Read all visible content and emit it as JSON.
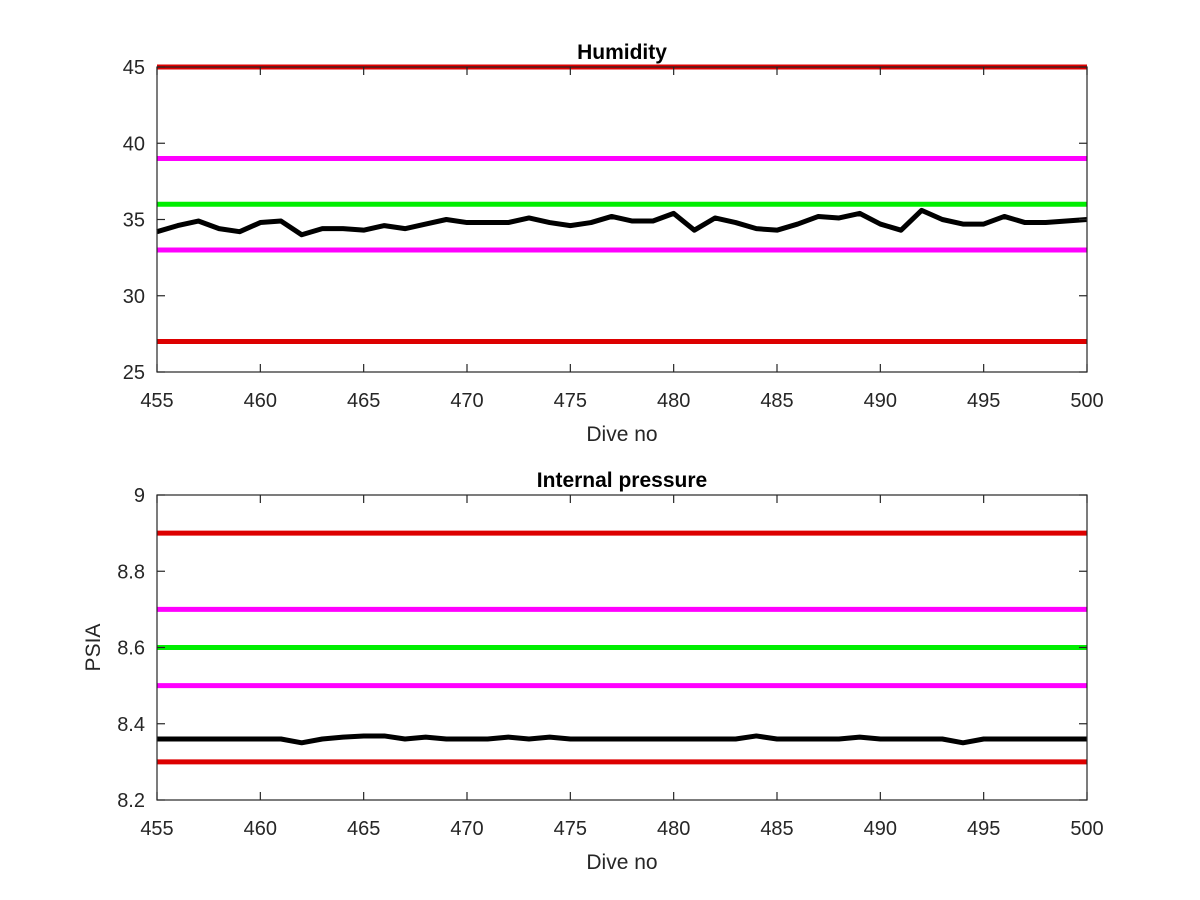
{
  "chart_data": [
    {
      "type": "line",
      "title": "Humidity",
      "xlabel": "Dive no",
      "ylabel": "",
      "xlim": [
        455,
        500
      ],
      "ylim": [
        25,
        45
      ],
      "xticks": [
        455,
        460,
        465,
        470,
        475,
        480,
        485,
        490,
        495,
        500
      ],
      "yticks": [
        25,
        30,
        35,
        40,
        45
      ],
      "grid": false,
      "reference_lines": [
        {
          "value": 45,
          "color": "#dd0000"
        },
        {
          "value": 39,
          "color": "#ff00ff"
        },
        {
          "value": 36,
          "color": "#00ee00"
        },
        {
          "value": 33,
          "color": "#ff00ff"
        },
        {
          "value": 27,
          "color": "#dd0000"
        }
      ],
      "series": [
        {
          "color": "#000000",
          "x": [
            455,
            456,
            457,
            458,
            459,
            460,
            461,
            462,
            463,
            464,
            465,
            466,
            467,
            468,
            469,
            470,
            471,
            472,
            473,
            474,
            475,
            476,
            477,
            478,
            479,
            480,
            481,
            482,
            483,
            484,
            485,
            486,
            487,
            488,
            489,
            490,
            491,
            492,
            493,
            494,
            495,
            496,
            497,
            498,
            499,
            500
          ],
          "values": [
            34.2,
            34.6,
            34.9,
            34.4,
            34.2,
            34.8,
            34.9,
            34.0,
            34.4,
            34.4,
            34.3,
            34.6,
            34.4,
            34.7,
            35.0,
            34.8,
            34.8,
            34.8,
            35.1,
            34.8,
            34.6,
            34.8,
            35.2,
            34.9,
            34.9,
            35.4,
            34.3,
            35.1,
            34.8,
            34.4,
            34.3,
            34.7,
            35.2,
            35.1,
            35.4,
            34.7,
            34.3,
            35.6,
            35.0,
            34.7,
            34.7,
            35.2,
            34.8,
            34.8,
            34.9,
            35.0
          ]
        }
      ]
    },
    {
      "type": "line",
      "title": "Internal pressure",
      "xlabel": "Dive no",
      "ylabel": "PSIA",
      "xlim": [
        455,
        500
      ],
      "ylim": [
        8.2,
        9
      ],
      "xticks": [
        455,
        460,
        465,
        470,
        475,
        480,
        485,
        490,
        495,
        500
      ],
      "yticks": [
        8.2,
        8.4,
        8.6,
        8.8,
        9
      ],
      "grid": false,
      "reference_lines": [
        {
          "value": 8.9,
          "color": "#dd0000"
        },
        {
          "value": 8.7,
          "color": "#ff00ff"
        },
        {
          "value": 8.6,
          "color": "#00ee00"
        },
        {
          "value": 8.5,
          "color": "#ff00ff"
        },
        {
          "value": 8.3,
          "color": "#dd0000"
        }
      ],
      "series": [
        {
          "color": "#000000",
          "x": [
            455,
            456,
            457,
            458,
            459,
            460,
            461,
            462,
            463,
            464,
            465,
            466,
            467,
            468,
            469,
            470,
            471,
            472,
            473,
            474,
            475,
            476,
            477,
            478,
            479,
            480,
            481,
            482,
            483,
            484,
            485,
            486,
            487,
            488,
            489,
            490,
            491,
            492,
            493,
            494,
            495,
            496,
            497,
            498,
            499,
            500
          ],
          "values": [
            8.36,
            8.36,
            8.36,
            8.36,
            8.36,
            8.36,
            8.36,
            8.35,
            8.36,
            8.365,
            8.368,
            8.368,
            8.36,
            8.365,
            8.36,
            8.36,
            8.36,
            8.365,
            8.36,
            8.365,
            8.36,
            8.36,
            8.36,
            8.36,
            8.36,
            8.36,
            8.36,
            8.36,
            8.36,
            8.368,
            8.36,
            8.36,
            8.36,
            8.36,
            8.365,
            8.36,
            8.36,
            8.36,
            8.36,
            8.35,
            8.36,
            8.36,
            8.36,
            8.36,
            8.36,
            8.36
          ]
        }
      ]
    }
  ]
}
